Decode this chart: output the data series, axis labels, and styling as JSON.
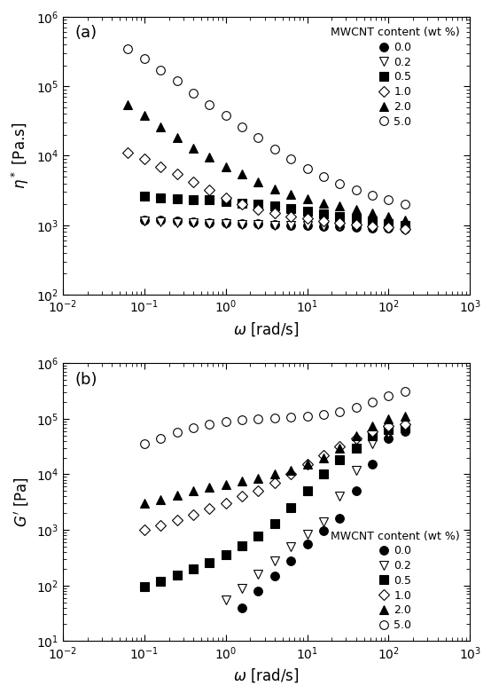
{
  "panel_a": {
    "title": "(a)",
    "xlabel": "$\\omega$ [rad/s]",
    "ylabel": "$\\eta^*$ [Pa.s]",
    "xlim": [
      0.01,
      1000
    ],
    "ylim": [
      100,
      1000000.0
    ],
    "series": [
      {
        "label": "0.0",
        "marker": "o",
        "filled": true,
        "color": "black",
        "omega": [
          0.1,
          0.158,
          0.251,
          0.398,
          0.631,
          1.0,
          1.585,
          2.512,
          3.981,
          6.31,
          10.0,
          15.85,
          25.12,
          39.81,
          63.1,
          100.0,
          158.5
        ],
        "eta": [
          1200,
          1180,
          1150,
          1120,
          1100,
          1080,
          1060,
          1040,
          1020,
          1000,
          990,
          975,
          960,
          940,
          920,
          900,
          870
        ]
      },
      {
        "label": "0.2",
        "marker": "v",
        "filled": false,
        "color": "black",
        "omega": [
          0.1,
          0.158,
          0.251,
          0.398,
          0.631,
          1.0,
          1.585,
          2.512,
          3.981,
          6.31,
          10.0,
          15.85,
          25.12,
          39.81,
          63.1,
          100.0,
          158.5
        ],
        "eta": [
          1150,
          1120,
          1100,
          1080,
          1060,
          1040,
          1020,
          1010,
          1000,
          990,
          980,
          970,
          960,
          945,
          930,
          910,
          880
        ]
      },
      {
        "label": "0.5",
        "marker": "s",
        "filled": true,
        "color": "black",
        "omega": [
          0.1,
          0.158,
          0.251,
          0.398,
          0.631,
          1.0,
          1.585,
          2.512,
          3.981,
          6.31,
          10.0,
          15.85,
          25.12,
          39.81,
          63.1,
          100.0,
          158.5
        ],
        "eta": [
          2600,
          2500,
          2400,
          2350,
          2300,
          2200,
          2100,
          2000,
          1900,
          1750,
          1600,
          1450,
          1350,
          1250,
          1150,
          1050,
          980
        ]
      },
      {
        "label": "1.0",
        "marker": "D",
        "filled": false,
        "color": "black",
        "omega": [
          0.0631,
          0.1,
          0.158,
          0.251,
          0.398,
          0.631,
          1.0,
          1.585,
          2.512,
          3.981,
          6.31,
          10.0,
          15.85,
          25.12,
          39.81,
          63.1,
          100.0,
          158.5
        ],
        "eta": [
          11000,
          9000,
          7000,
          5500,
          4200,
          3200,
          2500,
          2000,
          1700,
          1500,
          1350,
          1250,
          1150,
          1080,
          1020,
          970,
          930,
          870
        ]
      },
      {
        "label": "2.0",
        "marker": "^",
        "filled": true,
        "color": "black",
        "omega": [
          0.0631,
          0.1,
          0.158,
          0.251,
          0.398,
          0.631,
          1.0,
          1.585,
          2.512,
          3.981,
          6.31,
          10.0,
          15.85,
          25.12,
          39.81,
          63.1,
          100.0,
          158.5
        ],
        "eta": [
          55000,
          38000,
          26000,
          18000,
          13000,
          9500,
          7000,
          5500,
          4200,
          3300,
          2800,
          2400,
          2100,
          1900,
          1700,
          1500,
          1350,
          1200
        ]
      },
      {
        "label": "5.0",
        "marker": "o",
        "filled": false,
        "color": "black",
        "omega": [
          0.0631,
          0.1,
          0.158,
          0.251,
          0.398,
          0.631,
          1.0,
          1.585,
          2.512,
          3.981,
          6.31,
          10.0,
          15.85,
          25.12,
          39.81,
          63.1,
          100.0,
          158.5
        ],
        "eta": [
          350000,
          250000,
          170000,
          120000,
          80000,
          55000,
          38000,
          26000,
          18000,
          12500,
          9000,
          6500,
          5000,
          4000,
          3200,
          2700,
          2300,
          2000
        ]
      }
    ]
  },
  "panel_b": {
    "title": "(b)",
    "xlabel": "$\\omega$ [rad/s]",
    "ylabel": "$G'$ [Pa]",
    "xlim": [
      0.01,
      1000
    ],
    "ylim": [
      10,
      1000000.0
    ],
    "series": [
      {
        "label": "0.0",
        "marker": "o",
        "filled": true,
        "color": "black",
        "omega": [
          1.585,
          2.512,
          3.981,
          6.31,
          10.0,
          15.85,
          25.12,
          39.81,
          63.1,
          100.0,
          158.5
        ],
        "G": [
          40,
          80,
          150,
          280,
          550,
          950,
          1600,
          5000,
          15000,
          45000,
          60000
        ]
      },
      {
        "label": "0.2",
        "marker": "v",
        "filled": false,
        "color": "black",
        "omega": [
          1.0,
          1.585,
          2.512,
          3.981,
          6.31,
          10.0,
          15.85,
          25.12,
          39.81,
          63.1,
          100.0,
          158.5
        ],
        "G": [
          55,
          90,
          160,
          280,
          500,
          850,
          1400,
          4000,
          12000,
          35000,
          55000,
          65000
        ]
      },
      {
        "label": "0.5",
        "marker": "s",
        "filled": true,
        "color": "black",
        "omega": [
          0.1,
          0.158,
          0.251,
          0.398,
          0.631,
          1.0,
          1.585,
          2.512,
          3.981,
          6.31,
          10.0,
          15.85,
          25.12,
          39.81,
          63.1,
          100.0,
          158.5
        ],
        "G": [
          95,
          120,
          155,
          200,
          260,
          360,
          520,
          780,
          1300,
          2500,
          5000,
          10000,
          18000,
          30000,
          50000,
          65000,
          70000
        ]
      },
      {
        "label": "1.0",
        "marker": "D",
        "filled": false,
        "color": "black",
        "omega": [
          0.1,
          0.158,
          0.251,
          0.398,
          0.631,
          1.0,
          1.585,
          2.512,
          3.981,
          6.31,
          10.0,
          15.85,
          25.12,
          39.81,
          63.1,
          100.0,
          158.5
        ],
        "G": [
          1000,
          1200,
          1500,
          1900,
          2400,
          3000,
          4000,
          5000,
          7000,
          10000,
          15000,
          22000,
          32000,
          45000,
          60000,
          75000,
          80000
        ]
      },
      {
        "label": "2.0",
        "marker": "^",
        "filled": true,
        "color": "black",
        "omega": [
          0.1,
          0.158,
          0.251,
          0.398,
          0.631,
          1.0,
          1.585,
          2.512,
          3.981,
          6.31,
          10.0,
          15.85,
          25.12,
          39.81,
          63.1,
          100.0,
          158.5
        ],
        "G": [
          3000,
          3500,
          4200,
          5000,
          5800,
          6500,
          7500,
          8500,
          10000,
          12000,
          15000,
          20000,
          30000,
          50000,
          75000,
          100000,
          110000
        ]
      },
      {
        "label": "5.0",
        "marker": "o",
        "filled": false,
        "color": "black",
        "omega": [
          0.1,
          0.158,
          0.251,
          0.398,
          0.631,
          1.0,
          1.585,
          2.512,
          3.981,
          6.31,
          10.0,
          15.85,
          25.12,
          39.81,
          63.1,
          100.0,
          158.5
        ],
        "G": [
          35000,
          45000,
          58000,
          70000,
          80000,
          90000,
          95000,
          100000,
          105000,
          108000,
          112000,
          120000,
          135000,
          160000,
          200000,
          260000,
          310000
        ]
      }
    ]
  },
  "legend_title": "MWCNT content (wt %)",
  "marker_size": 7
}
